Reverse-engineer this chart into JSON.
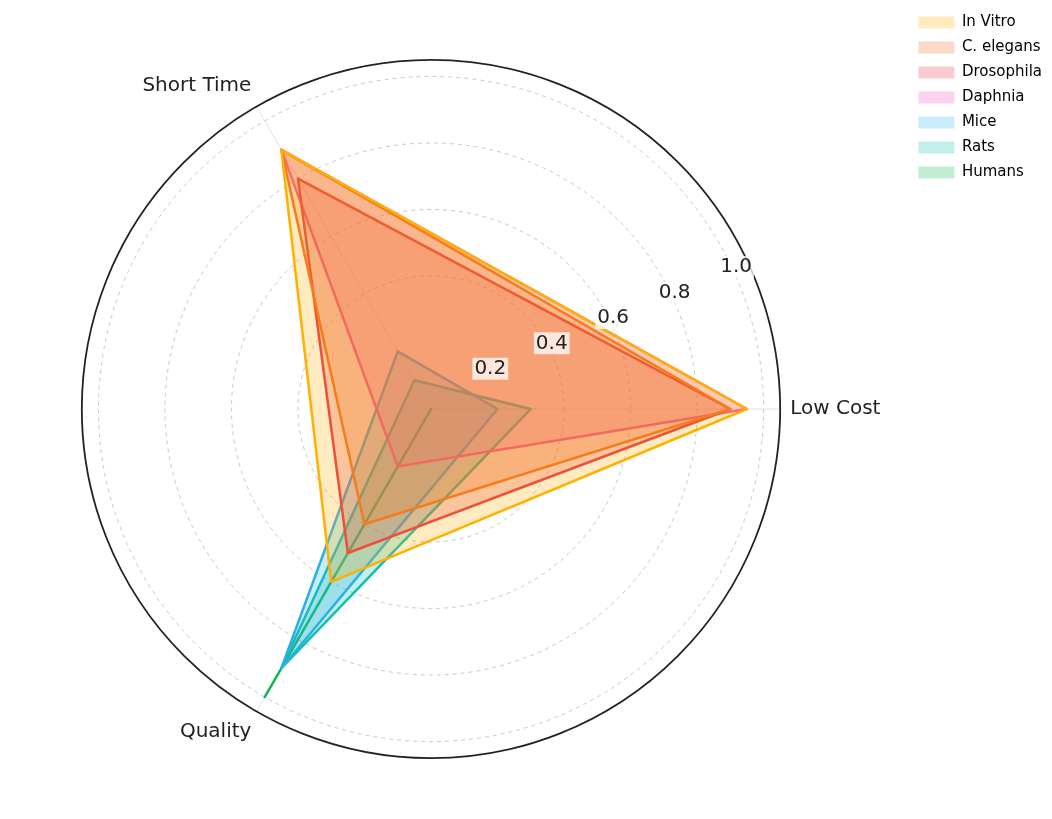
{
  "chart_data": {
    "type": "radar",
    "categories": [
      "Low Cost",
      "Quality",
      "Short Time"
    ],
    "series": [
      {
        "name": "In Vitro",
        "color": "#ffb000",
        "values": [
          0.95,
          0.6,
          0.9
        ]
      },
      {
        "name": "C. elegans",
        "color": "#f26b21",
        "values": [
          0.9,
          0.4,
          0.9
        ]
      },
      {
        "name": "Drosophila",
        "color": "#e8304a",
        "values": [
          0.9,
          0.5,
          0.8
        ]
      },
      {
        "name": "Daphnia",
        "color": "#f050c0",
        "values": [
          0.95,
          0.2,
          0.9
        ]
      },
      {
        "name": "Mice",
        "color": "#2ab0e8",
        "values": [
          0.2,
          0.9,
          0.2
        ]
      },
      {
        "name": "Rats",
        "color": "#10c0b0",
        "values": [
          0.3,
          0.9,
          0.1
        ]
      },
      {
        "name": "Humans",
        "color": "#10b850",
        "values": [
          0,
          1.0,
          0
        ]
      }
    ],
    "ylim": [
      0,
      1.05
    ],
    "yticks": [
      0.2,
      0.4,
      0.6,
      0.8,
      {
        "value": 1,
        "label": "1.0"
      }
    ],
    "grid": true,
    "legend": "top right",
    "marker": "none",
    "line_style": "solid"
  }
}
